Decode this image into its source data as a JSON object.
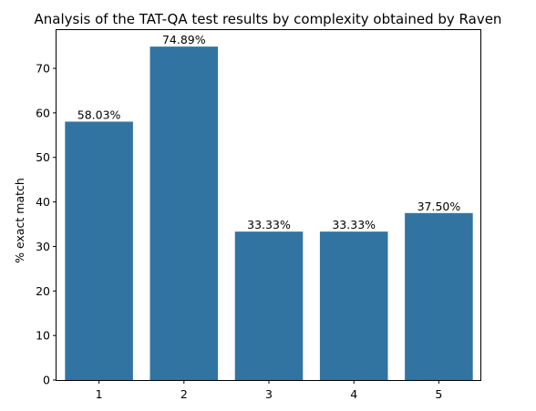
{
  "chart_data": {
    "type": "bar",
    "title": "Analysis of the TAT-QA test results by complexity obtained by Raven",
    "xlabel": "",
    "ylabel": "% exact match",
    "categories": [
      "1",
      "2",
      "3",
      "4",
      "5"
    ],
    "values": [
      58.03,
      74.89,
      33.33,
      33.33,
      37.5
    ],
    "data_labels": [
      "58.03%",
      "74.89%",
      "33.33%",
      "33.33%",
      "37.50%"
    ],
    "ylim": [
      0,
      78.6
    ],
    "yticks": [
      0,
      10,
      20,
      30,
      40,
      50,
      60,
      70
    ],
    "grid": false,
    "bar_color": "#3274a1"
  }
}
